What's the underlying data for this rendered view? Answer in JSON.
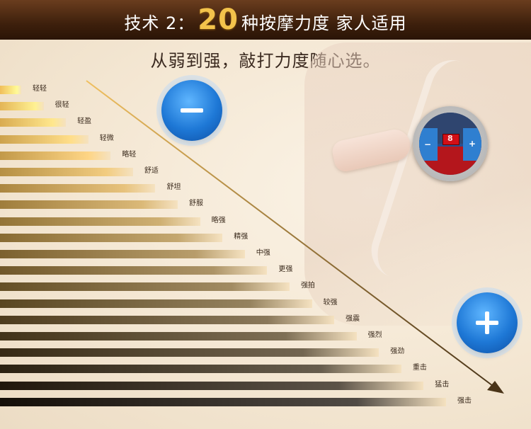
{
  "banner": {
    "prefix": "技术 2：",
    "number": "20",
    "suffix": "种按摩力度 家人适用"
  },
  "subtitle": "从弱到强，敲打力度随心选。",
  "controller": {
    "display_text": "8",
    "minus_symbol": "−",
    "plus_symbol": "+"
  },
  "chart_data": {
    "type": "bar",
    "orientation": "horizontal",
    "categories": [
      "轻轻",
      "很轻",
      "轻盈",
      "轻微",
      "略轻",
      "舒适",
      "舒坦",
      "舒服",
      "略强",
      "精强",
      "中强",
      "更强",
      "强拍",
      "较强",
      "强震",
      "强烈",
      "强劲",
      "重击",
      "猛击",
      "强击"
    ],
    "values": [
      1,
      2,
      3,
      4,
      5,
      6,
      7,
      8,
      9,
      10,
      11,
      12,
      13,
      14,
      15,
      16,
      17,
      18,
      19,
      20
    ]
  },
  "colors": {
    "banner_bg": "#3e200c",
    "accent_gold": "#f3c34b",
    "button_blue": "#1e78d6"
  }
}
